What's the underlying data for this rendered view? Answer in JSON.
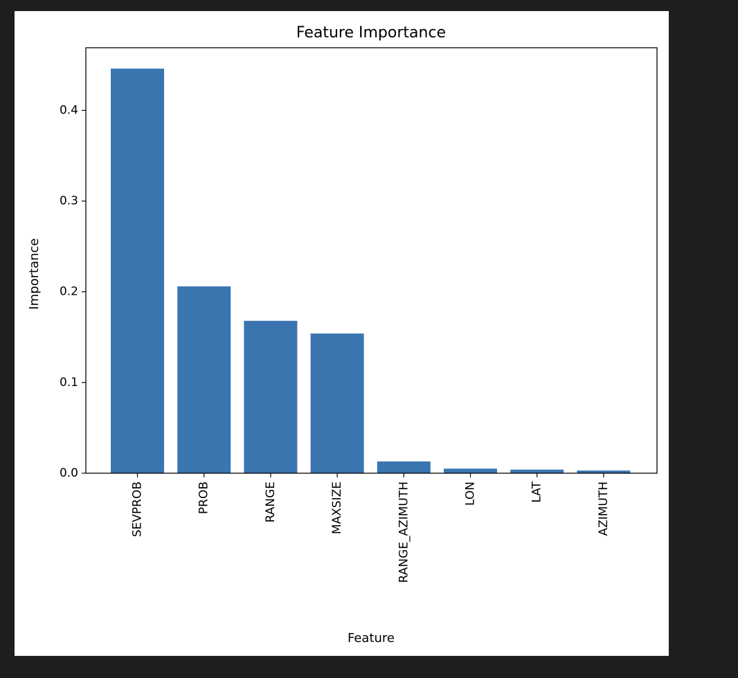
{
  "chart_data": {
    "type": "bar",
    "title": "Feature Importance",
    "xlabel": "Feature",
    "ylabel": "Importance",
    "categories": [
      "SEVPROB",
      "PROB",
      "RANGE",
      "MAXSIZE",
      "RANGE_AZIMUTH",
      "LON",
      "LAT",
      "AZIMUTH"
    ],
    "values": [
      0.446,
      0.206,
      0.168,
      0.154,
      0.013,
      0.005,
      0.004,
      0.003
    ],
    "ylim": [
      0,
      0.469
    ],
    "yticks": [
      0.0,
      0.1,
      0.2,
      0.3,
      0.4
    ],
    "ytick_labels": [
      "0.0",
      "0.1",
      "0.2",
      "0.3",
      "0.4"
    ],
    "bar_color": "#3b75af",
    "grid": false,
    "legend": "none"
  }
}
